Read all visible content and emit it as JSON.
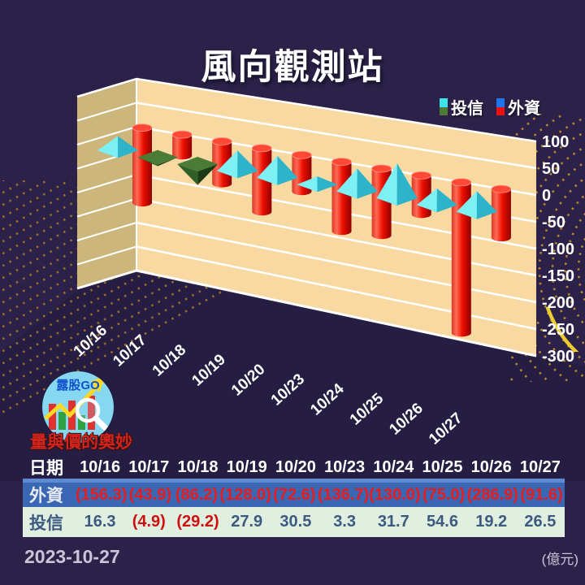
{
  "title": "風向觀測站",
  "legend": [
    {
      "label": "投信",
      "colors": [
        "#3ce4ec",
        "#4e7a36"
      ]
    },
    {
      "label": "外資",
      "colors": [
        "#1f76ec",
        "#ee1111"
      ]
    }
  ],
  "chart_data": {
    "type": "bar",
    "subtype": "3d-combo: red hanging cylinders (外資) + cone pyramids (投信)",
    "categories": [
      "10/16",
      "10/17",
      "10/18",
      "10/19",
      "10/20",
      "10/23",
      "10/24",
      "10/25",
      "10/26",
      "10/27"
    ],
    "series": [
      {
        "name": "外資",
        "marker": "cylinder",
        "color": "#ee1000",
        "values": [
          -156.3,
          -43.9,
          -86.2,
          -128.0,
          -72.6,
          -136.7,
          -130.0,
          -75.0,
          -286.9,
          -91.6
        ]
      },
      {
        "name": "投信",
        "marker": "cone",
        "color_up": "#4de4ee",
        "color_down": "#2e5a26",
        "values": [
          16.3,
          -4.9,
          -29.2,
          27.9,
          30.5,
          3.3,
          31.7,
          54.6,
          19.2,
          26.5
        ]
      }
    ],
    "y_ticks": [
      100,
      50,
      0,
      -50,
      -100,
      -150,
      -200,
      -250,
      -300
    ],
    "ylim": [
      -300,
      100
    ],
    "grid": true,
    "legend_position": "top-right",
    "unit": "(億元)"
  },
  "table": {
    "header_label": "日期",
    "dates": [
      "10/16",
      "10/17",
      "10/18",
      "10/19",
      "10/20",
      "10/23",
      "10/24",
      "10/25",
      "10/26",
      "10/27"
    ],
    "rows": [
      {
        "label": "外資",
        "values": [
          "(156.3)",
          "(43.9)",
          "(86.2)",
          "(128.0)",
          "(72.6)",
          "(136.7)",
          "(130.0)",
          "(75.0)",
          "(286.9)",
          "(91.6)"
        ]
      },
      {
        "label": "投信",
        "values": [
          "16.3",
          "(4.9)",
          "(29.2)",
          "27.9",
          "30.5",
          "3.3",
          "31.7",
          "54.6",
          "19.2",
          "26.5"
        ]
      }
    ]
  },
  "footer": {
    "date": "2023-10-27",
    "unit": "(億元)"
  },
  "logo": {
    "badge": "露股GO",
    "tagline": "量與價的奧妙"
  },
  "colors": {
    "background": "#2c2249",
    "floor": "#251d42",
    "wall_back": "#f8d9a2",
    "wall_side": "#cdb67c",
    "gridline": "#ffffff",
    "cylinder": "#ee1000",
    "cone_up": "#4de4ee",
    "cone_down": "#2e5a26",
    "table_row_foreign_bg": "#3a67b4",
    "table_row_trust_bg": "#e0efdf",
    "negative_value": "#e81c1c"
  }
}
